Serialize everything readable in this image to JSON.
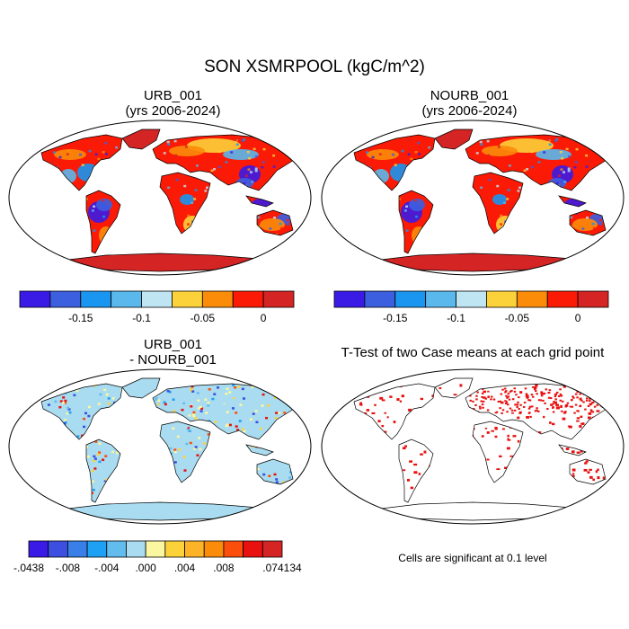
{
  "main_title": "SON XSMRPOOL (kgC/m^2)",
  "panels": {
    "top_left": {
      "title_line1": "URB_001",
      "title_line2": "(yrs 2006-2024)"
    },
    "top_right": {
      "title_line1": "NOURB_001",
      "title_line2": "(yrs 2006-2024)"
    },
    "bottom_left": {
      "title_line1": "URB_001",
      "title_line2": "- NOURB_001"
    },
    "bottom_right": {
      "title_line1": "T-Test of two Case means at each grid point"
    }
  },
  "colorbar_main": {
    "colors": [
      "#3a1be6",
      "#3c5fe0",
      "#1a96f0",
      "#5ab8ec",
      "#bfe4f2",
      "#fcd23a",
      "#fb8c0a",
      "#fb1a05",
      "#d42424"
    ],
    "labels": [
      "-0.15",
      "-0.1",
      "-0.05",
      "0"
    ],
    "label_boundary_index": [
      2,
      4,
      6,
      8
    ]
  },
  "colorbar_diff": {
    "colors": [
      "#3a1be6",
      "#3c4fe0",
      "#3a7ee8",
      "#1ea0f5",
      "#62bdee",
      "#a9dcf0",
      "#fbf7a0",
      "#fcd23a",
      "#fdb327",
      "#fb8c0a",
      "#fb4d0b",
      "#e8110f",
      "#d42424"
    ],
    "labels": [
      ".0438",
      ".008",
      ".004",
      ".000",
      ".004",
      ".008",
      ".074134"
    ],
    "label_prefixes": [
      "-",
      "-",
      "-",
      "",
      "",
      "",
      ""
    ],
    "label_boundary_index": [
      0,
      2,
      4,
      6,
      8,
      10,
      13
    ]
  },
  "significance_note": "Cells are significant at 0.1 level",
  "map_colors": {
    "ocean": "#ffffff",
    "outline": "#000000",
    "significant": "#e8110f",
    "antarctica_main": "#d42424",
    "antarctica_diff": "#a9dcf0"
  }
}
